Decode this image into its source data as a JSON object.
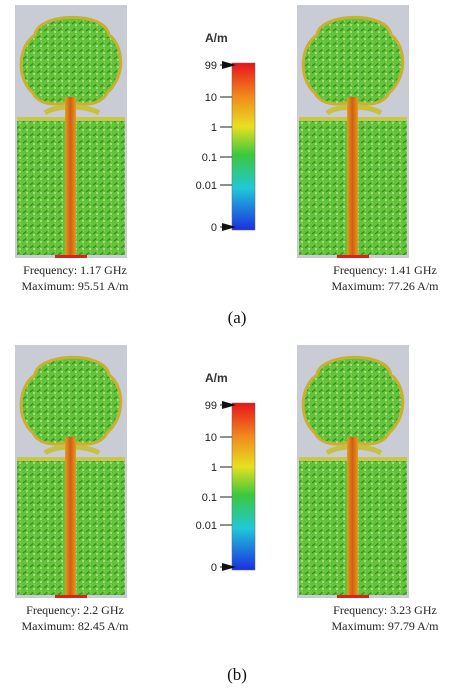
{
  "panels": [
    {
      "label": "(a)",
      "colorbar": {
        "unit": "A/m",
        "ticks": [
          "99",
          "10",
          "1",
          "0.1",
          "0.01",
          "0"
        ]
      },
      "images": [
        {
          "frequency": "Frequency:  1.17 GHz",
          "maximum": "Maximum:  95.51 A/m"
        },
        {
          "frequency": "Frequency:  1.41 GHz",
          "maximum": "Maximum:  77.26 A/m"
        }
      ]
    },
    {
      "label": "(b)",
      "colorbar": {
        "unit": "A/m",
        "ticks": [
          "99",
          "10",
          "1",
          "0.1",
          "0.01",
          "0"
        ]
      },
      "images": [
        {
          "frequency": "Frequency:  2.2 GHz",
          "maximum": "Maximum:  82.45 A/m"
        },
        {
          "frequency": "Frequency:  3.23 GHz",
          "maximum": "Maximum:  97.79 A/m"
        }
      ]
    }
  ]
}
